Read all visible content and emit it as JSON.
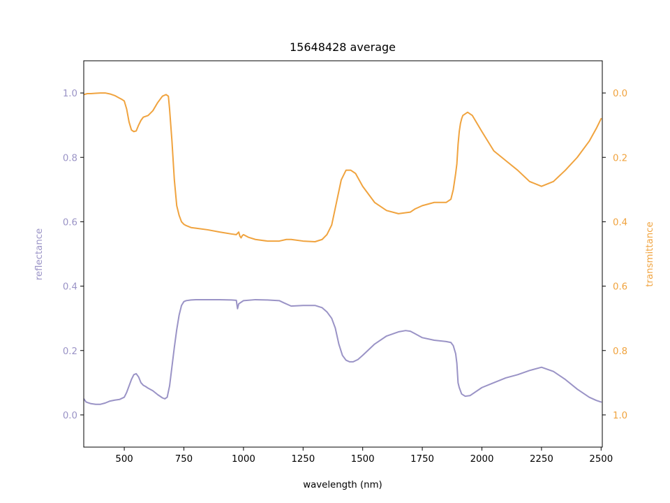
{
  "chart_data": {
    "type": "line",
    "title": "15648428 average",
    "xlabel": "wavelength (nm)",
    "ylabel_left": "reflectance",
    "ylabel_right": "transmittance",
    "xlim": [
      330,
      2505
    ],
    "ylim_left": [
      -0.1,
      1.1
    ],
    "ylim_right": [
      1.1,
      -0.1
    ],
    "right_axis_inverted": true,
    "grid": false,
    "x_ticks": [
      500,
      750,
      1000,
      1250,
      1500,
      1750,
      2000,
      2250,
      2500
    ],
    "y_ticks_left": [
      0.0,
      0.2,
      0.4,
      0.6,
      0.8,
      1.0
    ],
    "y_ticks_right": [
      0.0,
      0.2,
      0.4,
      0.6,
      0.8,
      1.0
    ],
    "colors": {
      "reflectance": "#9a93c6",
      "transmittance": "#f0a33e",
      "axis": "#000000"
    },
    "series": [
      {
        "name": "reflectance",
        "axis": "left",
        "x": [
          330,
          340,
          360,
          380,
          400,
          420,
          440,
          460,
          480,
          500,
          510,
          520,
          530,
          540,
          550,
          560,
          570,
          580,
          590,
          600,
          620,
          640,
          660,
          670,
          680,
          690,
          700,
          710,
          720,
          730,
          740,
          750,
          760,
          780,
          800,
          850,
          900,
          950,
          970,
          975,
          980,
          990,
          1000,
          1050,
          1100,
          1150,
          1170,
          1200,
          1250,
          1300,
          1330,
          1350,
          1370,
          1385,
          1400,
          1415,
          1430,
          1445,
          1460,
          1480,
          1500,
          1550,
          1600,
          1650,
          1680,
          1700,
          1720,
          1750,
          1800,
          1850,
          1870,
          1880,
          1890,
          1895,
          1900,
          1905,
          1910,
          1915,
          1930,
          1950,
          2000,
          2050,
          2100,
          2150,
          2200,
          2250,
          2300,
          2350,
          2400,
          2450,
          2480,
          2500
        ],
        "y": [
          0.05,
          0.04,
          0.035,
          0.033,
          0.033,
          0.037,
          0.043,
          0.046,
          0.048,
          0.055,
          0.07,
          0.09,
          0.11,
          0.125,
          0.128,
          0.118,
          0.1,
          0.092,
          0.088,
          0.083,
          0.075,
          0.063,
          0.053,
          0.05,
          0.055,
          0.09,
          0.15,
          0.21,
          0.265,
          0.31,
          0.34,
          0.352,
          0.355,
          0.357,
          0.358,
          0.358,
          0.358,
          0.357,
          0.356,
          0.33,
          0.345,
          0.35,
          0.355,
          0.358,
          0.357,
          0.355,
          0.348,
          0.338,
          0.34,
          0.34,
          0.333,
          0.32,
          0.3,
          0.27,
          0.22,
          0.185,
          0.17,
          0.165,
          0.165,
          0.172,
          0.185,
          0.22,
          0.245,
          0.258,
          0.262,
          0.26,
          0.252,
          0.24,
          0.232,
          0.228,
          0.225,
          0.215,
          0.19,
          0.16,
          0.1,
          0.085,
          0.075,
          0.065,
          0.058,
          0.06,
          0.085,
          0.1,
          0.115,
          0.125,
          0.138,
          0.148,
          0.135,
          0.11,
          0.08,
          0.055,
          0.045,
          0.04
        ]
      },
      {
        "name": "transmittance",
        "axis": "right",
        "x": [
          330,
          345,
          360,
          380,
          400,
          420,
          440,
          460,
          480,
          490,
          500,
          510,
          520,
          530,
          540,
          550,
          560,
          570,
          580,
          600,
          620,
          640,
          660,
          675,
          685,
          690,
          700,
          710,
          720,
          730,
          740,
          750,
          760,
          780,
          800,
          850,
          900,
          950,
          970,
          980,
          985,
          990,
          995,
          1000,
          1020,
          1050,
          1100,
          1150,
          1180,
          1200,
          1250,
          1300,
          1330,
          1350,
          1370,
          1390,
          1410,
          1430,
          1450,
          1470,
          1500,
          1550,
          1600,
          1650,
          1680,
          1700,
          1720,
          1750,
          1800,
          1850,
          1870,
          1880,
          1890,
          1895,
          1900,
          1905,
          1910,
          1915,
          1920,
          1940,
          1960,
          2000,
          2050,
          2100,
          2150,
          2200,
          2250,
          2300,
          2350,
          2400,
          2450,
          2480,
          2500
        ],
        "y": [
          0.005,
          0.002,
          0.002,
          0.001,
          0.0,
          0.0,
          0.003,
          0.008,
          0.016,
          0.02,
          0.025,
          0.05,
          0.09,
          0.115,
          0.12,
          0.118,
          0.1,
          0.085,
          0.075,
          0.07,
          0.055,
          0.03,
          0.01,
          0.005,
          0.01,
          0.05,
          0.15,
          0.27,
          0.35,
          0.38,
          0.4,
          0.408,
          0.412,
          0.418,
          0.42,
          0.425,
          0.432,
          0.438,
          0.44,
          0.432,
          0.445,
          0.45,
          0.443,
          0.44,
          0.448,
          0.455,
          0.46,
          0.46,
          0.455,
          0.455,
          0.46,
          0.462,
          0.455,
          0.44,
          0.41,
          0.34,
          0.27,
          0.24,
          0.24,
          0.25,
          0.29,
          0.34,
          0.365,
          0.375,
          0.372,
          0.37,
          0.36,
          0.35,
          0.34,
          0.34,
          0.33,
          0.3,
          0.25,
          0.22,
          0.16,
          0.12,
          0.095,
          0.08,
          0.07,
          0.06,
          0.07,
          0.12,
          0.18,
          0.21,
          0.24,
          0.275,
          0.29,
          0.275,
          0.24,
          0.2,
          0.15,
          0.11,
          0.08
        ]
      }
    ]
  }
}
